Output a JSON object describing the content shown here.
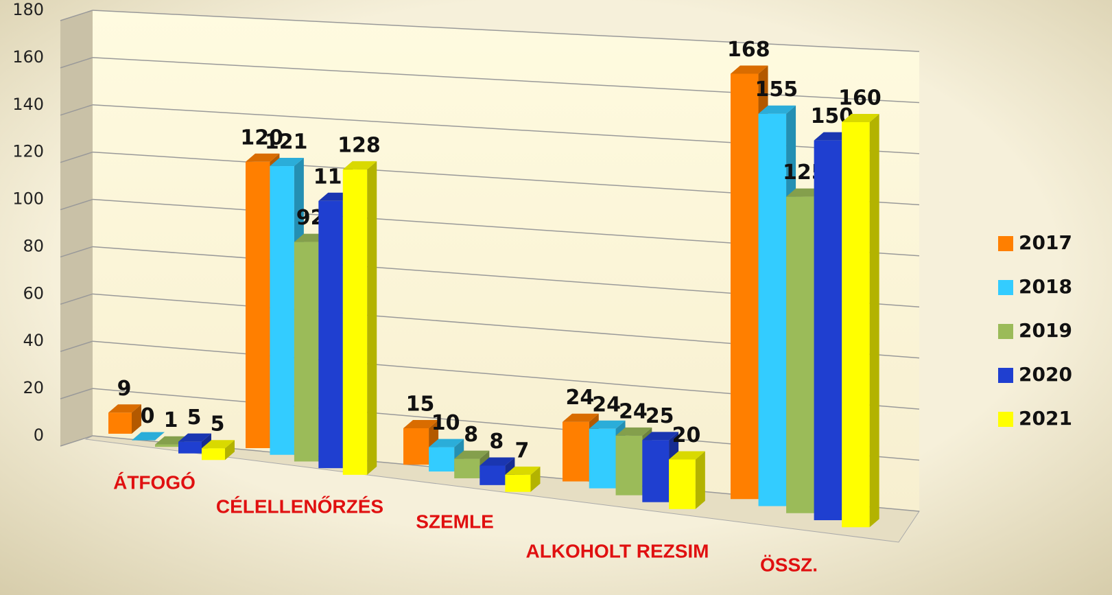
{
  "chart_data": {
    "type": "bar3d",
    "categories": [
      "ÁTFOGÓ",
      "CÉLELLENŐRZÉS",
      "SZEMLE",
      "ALKOHOLT REZSIM",
      "ÖSSZ."
    ],
    "series": [
      {
        "name": "2017",
        "color": "#ff7f00",
        "values": [
          9,
          120,
          15,
          24,
          168
        ]
      },
      {
        "name": "2018",
        "color": "#33ccff",
        "values": [
          0,
          121,
          10,
          24,
          155
        ]
      },
      {
        "name": "2019",
        "color": "#9bbb59",
        "values": [
          1,
          92,
          8,
          24,
          125
        ]
      },
      {
        "name": "2020",
        "color": "#1f3fd0",
        "values": [
          5,
          112,
          8,
          25,
          150
        ]
      },
      {
        "name": "2021",
        "color": "#ffff00",
        "values": [
          5,
          128,
          7,
          20,
          160
        ]
      }
    ],
    "ylim": [
      0,
      180
    ],
    "yticks": [
      0,
      20,
      40,
      60,
      80,
      100,
      120,
      140,
      160,
      180
    ],
    "grid": true,
    "legend": "right"
  }
}
